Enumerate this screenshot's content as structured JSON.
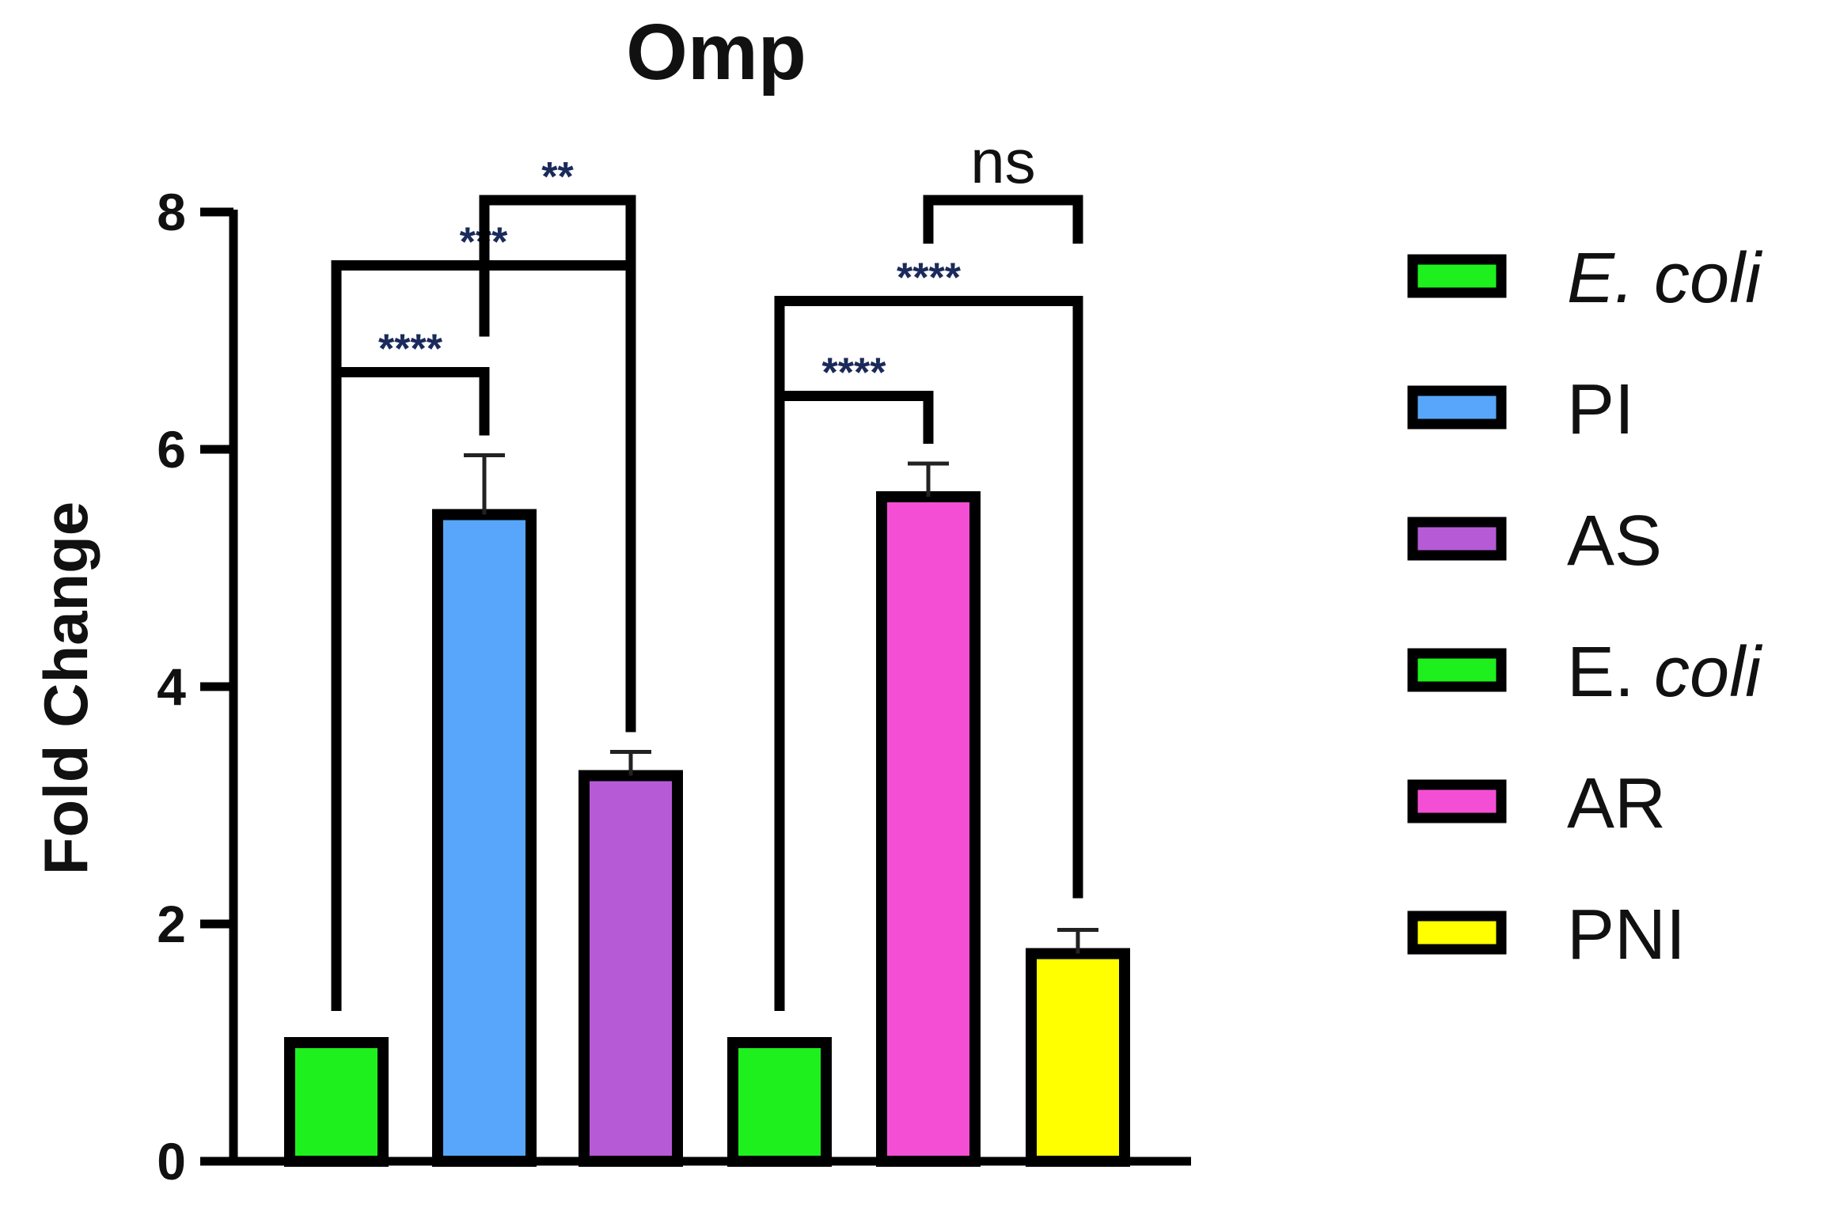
{
  "chart_data": {
    "type": "bar",
    "title": "Omp",
    "xlabel": "",
    "ylabel": "Fold Change",
    "ylim": [
      0,
      8
    ],
    "yticks": [
      "0",
      "2",
      "4",
      "6",
      "8"
    ],
    "grid": false,
    "legend_position": "right",
    "categories": [
      "E. coli",
      "PI",
      "AS",
      "E. coli",
      "AR",
      "PNI"
    ],
    "values": [
      1.0,
      5.45,
      3.25,
      1.0,
      5.6,
      1.75
    ],
    "errors": [
      0.0,
      0.5,
      0.2,
      0.0,
      0.28,
      0.2
    ],
    "colors": [
      "#1ef01e",
      "#58a6fb",
      "#b65ad6",
      "#1ef01e",
      "#f44fd4",
      "#ffff00"
    ],
    "legend": [
      {
        "label": "E. coli",
        "italic": "true"
      },
      {
        "label": "PI",
        "italic": "false"
      },
      {
        "label": "AS",
        "italic": "false"
      },
      {
        "label": "E. coli",
        "italic": "partial"
      },
      {
        "label": "AR",
        "italic": "false"
      },
      {
        "label": "PNI",
        "italic": "false"
      }
    ],
    "significance": [
      {
        "from": 0,
        "to": 1,
        "label": "****",
        "level": 6.65
      },
      {
        "from": 0,
        "to": 2,
        "label": "***",
        "level": 7.55
      },
      {
        "from": 1,
        "to": 2,
        "label": "**",
        "level": 8.1
      },
      {
        "from": 3,
        "to": 4,
        "label": "****",
        "level": 6.45
      },
      {
        "from": 3,
        "to": 5,
        "label": "****",
        "level": 7.25
      },
      {
        "from": 4,
        "to": 5,
        "label": "ns",
        "level": 8.1
      }
    ]
  }
}
